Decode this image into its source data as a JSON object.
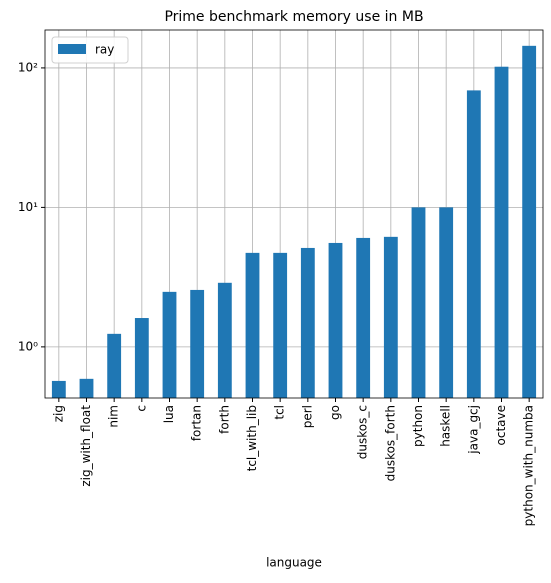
{
  "chart_data": {
    "type": "bar",
    "title": "Prime benchmark memory use in MB",
    "x_label": "language",
    "categories": [
      "zig",
      "zig_with_float",
      "nim",
      "c",
      "lua",
      "fortan",
      "forth",
      "tcl_with_lib",
      "tcl",
      "perl",
      "go",
      "duskos_c",
      "duskos_forth",
      "python",
      "haskell",
      "java_gcj",
      "octave",
      "python_with_numba"
    ],
    "series": [
      {
        "name": "ray",
        "color": "#1f77b4",
        "values": [
          0.57,
          0.59,
          1.24,
          1.61,
          2.48,
          2.56,
          2.88,
          4.72,
          4.72,
          5.12,
          5.56,
          6.04,
          6.15,
          10,
          10,
          69,
          102,
          144
        ]
      }
    ],
    "ylim": [
      0.43,
      187
    ],
    "log_scale": true,
    "yticks": [
      {
        "value": 1,
        "label": "10⁰"
      },
      {
        "value": 10,
        "label": "10¹"
      },
      {
        "value": 100,
        "label": "10²"
      }
    ],
    "grid": true,
    "legend": "upper-left"
  }
}
